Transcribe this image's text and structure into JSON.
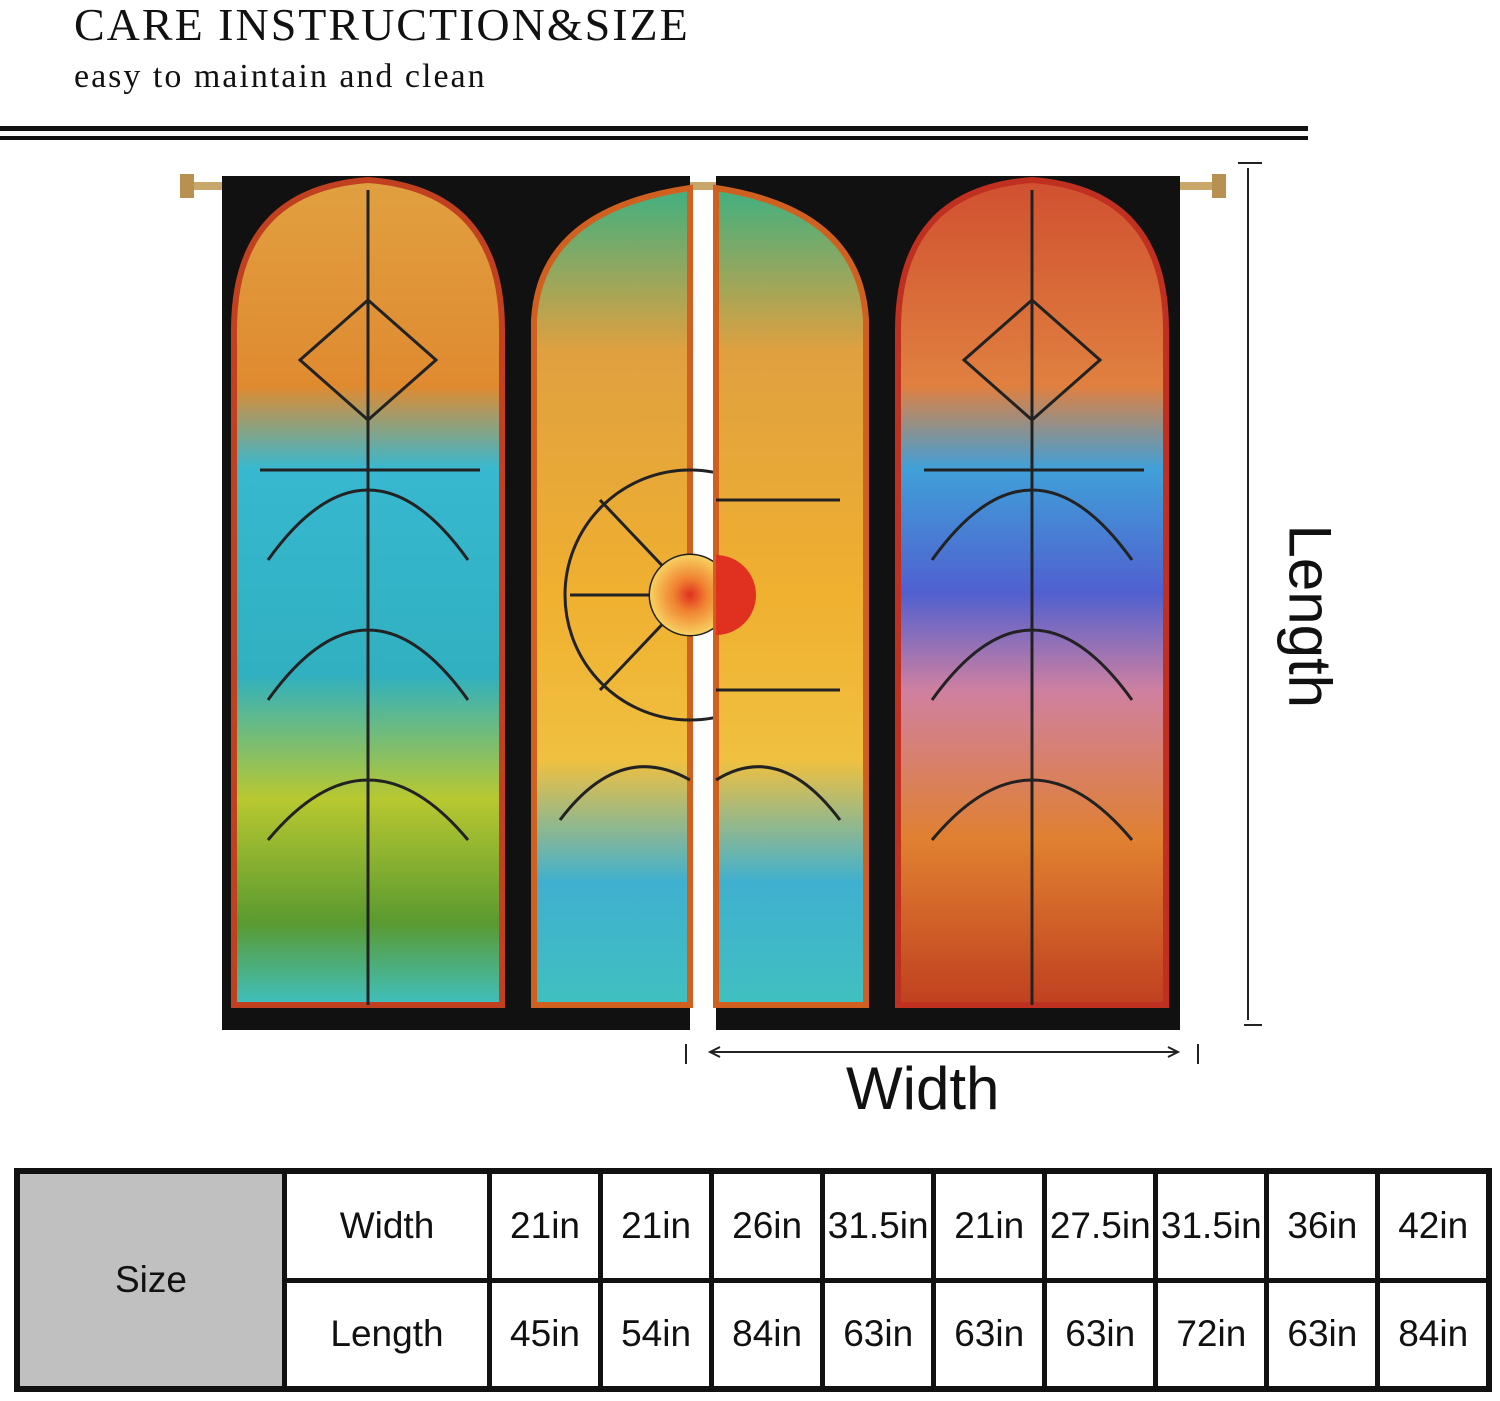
{
  "header": {
    "title": "CARE INSTRUCTION&SIZE",
    "subtitle": "easy to maintain and clean"
  },
  "diagram": {
    "length_label": "Length",
    "width_label": "Width"
  },
  "size_table": {
    "heading": "Size",
    "rows": [
      {
        "label": "Width",
        "values": [
          "21in",
          "21in",
          "26in",
          "31.5in",
          "21in",
          "27.5in",
          "31.5in",
          "36in",
          "42in"
        ]
      },
      {
        "label": "Length",
        "values": [
          "45in",
          "54in",
          "84in",
          "63in",
          "63in",
          "63in",
          "72in",
          "63in",
          "84in"
        ]
      }
    ]
  },
  "colors": {
    "table_heading_bg": "#c0c0c0",
    "lead": "#111111"
  }
}
